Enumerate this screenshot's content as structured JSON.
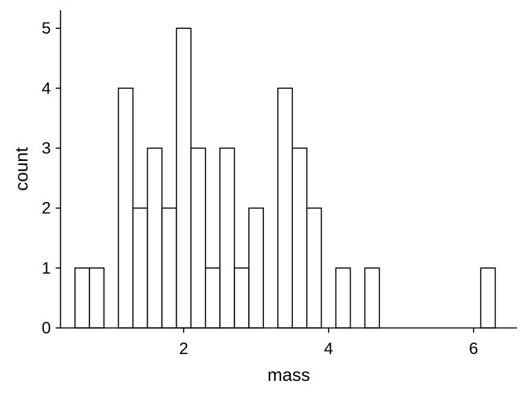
{
  "chart_data": {
    "type": "bar",
    "subtype": "histogram",
    "xlabel": "mass",
    "ylabel": "count",
    "xlim": [
      0.3,
      6.6
    ],
    "ylim": [
      0,
      5.3
    ],
    "x_ticks": [
      2,
      4,
      6
    ],
    "y_ticks": [
      0,
      1,
      2,
      3,
      4,
      5
    ],
    "bin_width": 0.2,
    "bin_starts": [
      0.5,
      0.7,
      0.9,
      1.1,
      1.3,
      1.5,
      1.7,
      1.9,
      2.1,
      2.3,
      2.5,
      2.7,
      2.9,
      3.1,
      3.3,
      3.5,
      3.7,
      3.9,
      4.1,
      4.3,
      4.5,
      4.7,
      4.9,
      5.1,
      5.3,
      5.5,
      5.7,
      5.9,
      6.1,
      6.3
    ],
    "values": [
      1,
      1,
      0,
      4,
      2,
      3,
      2,
      5,
      3,
      1,
      3,
      1,
      2,
      0,
      4,
      3,
      2,
      0,
      1,
      0,
      1,
      0,
      0,
      0,
      0,
      0,
      0,
      0,
      1,
      0
    ],
    "grid": false,
    "legend": "none",
    "bar_fill": "#ffffff",
    "bar_stroke": "#000000"
  }
}
